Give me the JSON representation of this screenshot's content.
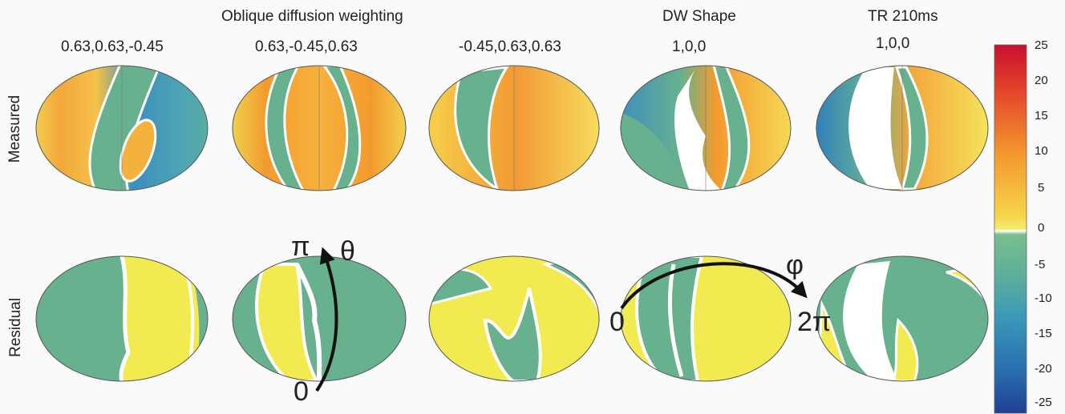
{
  "header": {
    "group_title": "Oblique diffusion weighting",
    "dw_shape_title": "DW Shape",
    "tr_title": "TR 210ms"
  },
  "columns": [
    {
      "label": "0.63,0.63,-0.45"
    },
    {
      "label": "0.63,-0.45,0.63"
    },
    {
      "label": "-0.45,0.63,0.63"
    },
    {
      "label": "1,0,0"
    },
    {
      "label": "1,0,0"
    }
  ],
  "rows": [
    {
      "label": "Measured"
    },
    {
      "label": "Residual"
    }
  ],
  "annotations": {
    "theta_top": "π",
    "theta_symbol": "θ",
    "theta_bottom": "0",
    "phi_symbol": "φ",
    "phi_start": "0",
    "phi_end": "2π"
  },
  "colorbar": {
    "ticks": [
      "25",
      "20",
      "15",
      "10",
      "5",
      "0",
      "-5",
      "-10",
      "-15",
      "-20",
      "-25"
    ],
    "colors": {
      "red": "#d7191c",
      "orange": "#f39a2e",
      "yellow": "#f1ea50",
      "green": "#68b587",
      "blue": "#2166ac"
    }
  }
}
